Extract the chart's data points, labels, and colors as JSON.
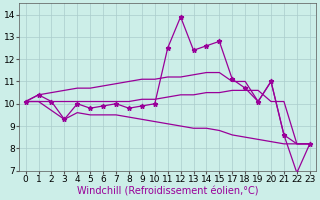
{
  "xlabel": "Windchill (Refroidissement éolien,°C)",
  "background_color": "#cceee8",
  "grid_color": "#aacccc",
  "line_color": "#990099",
  "x_indices": [
    0,
    1,
    2,
    3,
    4,
    5,
    6,
    7,
    8,
    9,
    10,
    11,
    12,
    13,
    14,
    15,
    16,
    17,
    18,
    19,
    20,
    21,
    22
  ],
  "xtick_labels": [
    "0",
    "1",
    "2",
    "3",
    "4",
    "5",
    "6",
    "7",
    "8",
    "9",
    "10",
    "11",
    "12",
    "13",
    "14",
    "15",
    "17",
    "18",
    "19",
    "20",
    "21",
    "22",
    "23"
  ],
  "line1_y": [
    10.1,
    10.4,
    10.1,
    9.3,
    10.0,
    9.8,
    9.9,
    10.0,
    9.8,
    9.9,
    10.0,
    12.5,
    13.9,
    12.4,
    12.6,
    12.8,
    11.1,
    10.7,
    10.1,
    11.0,
    8.6,
    6.9,
    8.2
  ],
  "line2_y": [
    10.1,
    10.1,
    10.1,
    10.1,
    10.1,
    10.1,
    10.1,
    10.1,
    10.1,
    10.2,
    10.2,
    10.3,
    10.4,
    10.4,
    10.5,
    10.5,
    10.6,
    10.6,
    10.6,
    10.1,
    10.1,
    8.2,
    8.2
  ],
  "line3_y": [
    10.1,
    10.4,
    10.5,
    10.6,
    10.7,
    10.7,
    10.8,
    10.9,
    11.0,
    11.1,
    11.1,
    11.2,
    11.2,
    11.3,
    11.4,
    11.4,
    11.0,
    11.0,
    10.1,
    11.0,
    8.6,
    8.2,
    8.2
  ],
  "line4_y": [
    10.1,
    10.1,
    9.7,
    9.3,
    9.6,
    9.5,
    9.5,
    9.5,
    9.4,
    9.3,
    9.2,
    9.1,
    9.0,
    8.9,
    8.9,
    8.8,
    8.6,
    8.5,
    8.4,
    8.3,
    8.2,
    8.2,
    8.2
  ],
  "xlim": [
    -0.5,
    22.5
  ],
  "ylim": [
    7,
    14.5
  ],
  "yticks": [
    7,
    8,
    9,
    10,
    11,
    12,
    13,
    14
  ],
  "tick_fontsize": 6.5,
  "xlabel_fontsize": 7,
  "linewidth": 0.9,
  "markersize": 3.5
}
